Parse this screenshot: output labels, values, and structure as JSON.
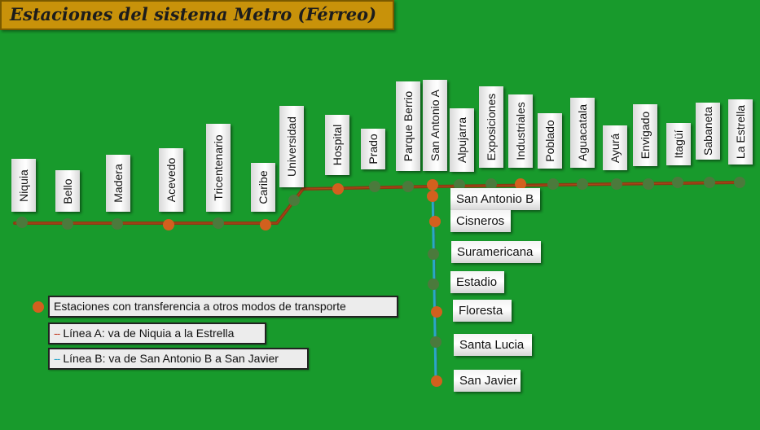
{
  "title": "Estaciones del sistema Metro (Férreo)",
  "colors": {
    "background": "#189a2c",
    "transfer_station": "#d2601e",
    "normal_station": "#4b7a3c",
    "line_a": "#8a3b12",
    "line_b": "#2aa6c9",
    "title_bg": "#c8920a"
  },
  "line_a": {
    "stations": [
      {
        "name": "Niquia",
        "transfer": false
      },
      {
        "name": "Bello",
        "transfer": false
      },
      {
        "name": "Madera",
        "transfer": false
      },
      {
        "name": "Acevedo",
        "transfer": true
      },
      {
        "name": "Tricentenario",
        "transfer": false
      },
      {
        "name": "Caribe",
        "transfer": true
      },
      {
        "name": "Universidad",
        "transfer": false
      },
      {
        "name": "Hospital",
        "transfer": true
      },
      {
        "name": "Prado",
        "transfer": false
      },
      {
        "name": "Parque Berrio",
        "transfer": false
      },
      {
        "name": "San Antonio A",
        "transfer": true
      },
      {
        "name": "Alpujarra",
        "transfer": false
      },
      {
        "name": "Exposiciones",
        "transfer": false
      },
      {
        "name": "Industriales",
        "transfer": true
      },
      {
        "name": "Poblado",
        "transfer": false
      },
      {
        "name": "Aguacatala",
        "transfer": false
      },
      {
        "name": "Ayurá",
        "transfer": false
      },
      {
        "name": "Envigado",
        "transfer": false
      },
      {
        "name": "Itagüí",
        "transfer": false
      },
      {
        "name": "Sabaneta",
        "transfer": false
      },
      {
        "name": "La Estrella",
        "transfer": false
      }
    ]
  },
  "line_b": {
    "stations": [
      {
        "name": "San Antonio B",
        "transfer": true
      },
      {
        "name": "Cisneros",
        "transfer": true
      },
      {
        "name": "Suramericana",
        "transfer": false
      },
      {
        "name": "Estadio",
        "transfer": false
      },
      {
        "name": "Floresta",
        "transfer": true
      },
      {
        "name": "Santa Lucia",
        "transfer": false
      },
      {
        "name": "San Javier",
        "transfer": true
      }
    ]
  },
  "legend": {
    "transfer": "Estaciones con transferencia a otros modos de transporte",
    "line_a_dash": "--",
    "line_a": "Línea A: va de Niquia a la Estrella",
    "line_b_dash": "--",
    "line_b": "Línea B: va de San Antonio B a San Javier"
  }
}
